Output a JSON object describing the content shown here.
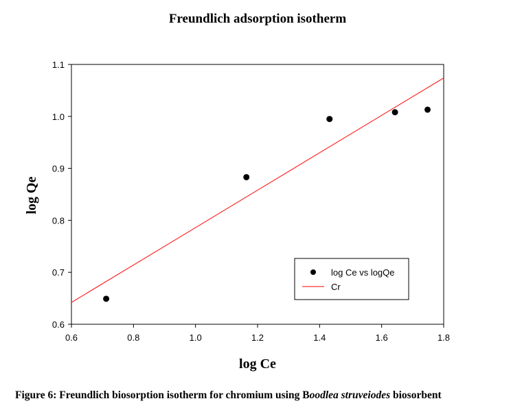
{
  "chart_data": {
    "type": "scatter",
    "title": "Freundlich adsorption isotherm",
    "xlabel": "log Ce",
    "ylabel": "log Qe",
    "xlim": [
      0.6,
      1.8
    ],
    "ylim": [
      0.6,
      1.1
    ],
    "xticks": [
      "0.6",
      "0.8",
      "1.0",
      "1.2",
      "1.4",
      "1.6",
      "1.8"
    ],
    "yticks": [
      "0.6",
      "0.7",
      "0.8",
      "0.9",
      "1.0",
      "1.1"
    ],
    "grid": false,
    "legend_position": "bottom-right",
    "series": [
      {
        "name": "log Ce vs logQe",
        "kind": "scatter",
        "color": "#000000",
        "x": [
          0.712,
          1.164,
          1.432,
          1.643,
          1.748
        ],
        "y": [
          0.649,
          0.883,
          0.995,
          1.008,
          1.013
        ]
      },
      {
        "name": "Cr",
        "kind": "line",
        "color": "#ff0000",
        "x": [
          0.6,
          1.8
        ],
        "y": [
          0.642,
          1.074
        ]
      }
    ]
  },
  "caption": {
    "prefix": "Figure 6: Freundlich biosorption isotherm for chromium using B",
    "italic_start": "oodlea",
    "italic_end": "struveiodes",
    "suffix": " biosorbent"
  }
}
